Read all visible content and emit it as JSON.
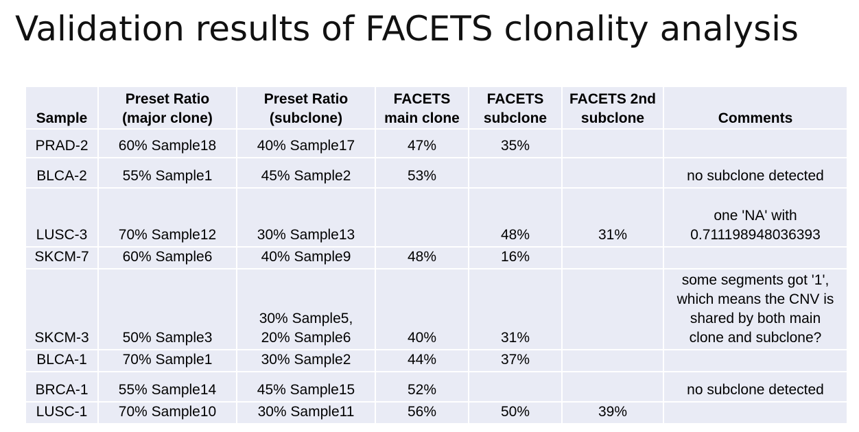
{
  "title": "Validation results of FACETS clonality analysis",
  "table": {
    "headers": [
      "Sample",
      "Preset Ratio\n(major clone)",
      "Preset Ratio\n(subclone)",
      "FACETS\nmain clone",
      "FACETS\nsubclone",
      "FACETS 2nd\nsubclone",
      "Comments"
    ],
    "rows": [
      {
        "sample": "PRAD-2",
        "major": "60% Sample18",
        "sub": "40% Sample17",
        "main_clone": "47%",
        "subclone": "35%",
        "second_subclone": "",
        "comments": ""
      },
      {
        "sample": "BLCA-2",
        "major": "55% Sample1",
        "sub": "45% Sample2",
        "main_clone": "53%",
        "subclone": "",
        "second_subclone": "",
        "comments": "no subclone detected"
      },
      {
        "sample": "LUSC-3",
        "major": "70% Sample12",
        "sub": "30% Sample13",
        "main_clone": "",
        "subclone": "48%",
        "second_subclone": "31%",
        "comments": "one 'NA' with\n0.711198948036393"
      },
      {
        "sample": "SKCM-7",
        "major": "60% Sample6",
        "sub": "40% Sample9",
        "main_clone": "48%",
        "subclone": "16%",
        "second_subclone": "",
        "comments": ""
      },
      {
        "sample": "SKCM-3",
        "major": "50% Sample3",
        "sub": "30% Sample5,\n20% Sample6",
        "main_clone": "40%",
        "subclone": "31%",
        "second_subclone": "",
        "comments": "some segments got '1',\nwhich means the CNV is\nshared by both main\nclone and subclone?"
      },
      {
        "sample": "BLCA-1",
        "major": "70% Sample1",
        "sub": "30% Sample2",
        "main_clone": "44%",
        "subclone": "37%",
        "second_subclone": "",
        "comments": ""
      },
      {
        "sample": "BRCA-1",
        "major": "55% Sample14",
        "sub": "45% Sample15",
        "main_clone": "52%",
        "subclone": "",
        "second_subclone": "",
        "comments": "no subclone detected"
      },
      {
        "sample": "LUSC-1",
        "major": "70% Sample10",
        "sub": "30% Sample11",
        "main_clone": "56%",
        "subclone": "50%",
        "second_subclone": "39%",
        "comments": ""
      }
    ]
  },
  "colors": {
    "cell_background": "#e9ebf5",
    "cell_border": "#ffffff",
    "text": "#000000"
  }
}
